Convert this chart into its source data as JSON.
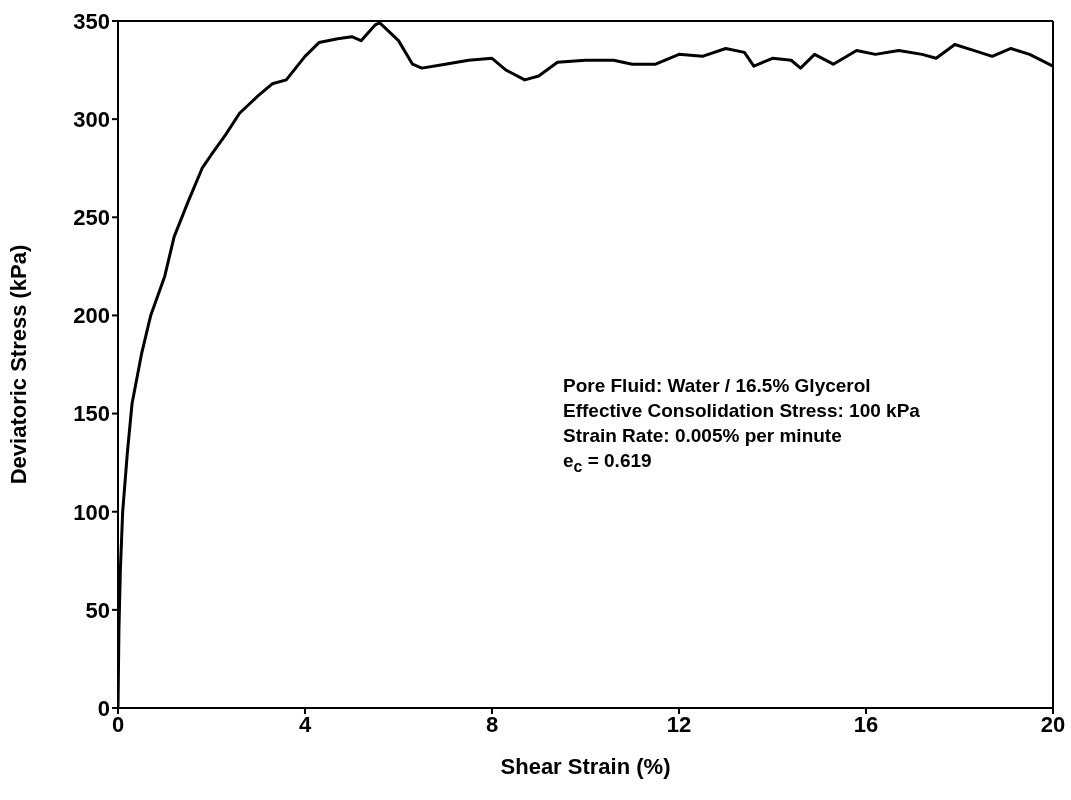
{
  "chart_data": {
    "type": "line",
    "xlabel": "Shear Strain (%)",
    "ylabel": "Deviatoric Stress (kPa)",
    "xlim": [
      0,
      20
    ],
    "xticks": [
      0,
      4,
      8,
      12,
      16,
      20
    ],
    "ylim": [
      0,
      350
    ],
    "yticks": [
      0,
      50,
      100,
      150,
      200,
      250,
      300,
      350
    ],
    "grid": false,
    "marker": "none",
    "line_style": "solid",
    "annotations": [
      "Pore Fluid: Water / 16.5% Glycerol",
      "Effective Consolidation Stress: 100 kPa",
      "Strain Rate: 0.005% per minute",
      "e$_{c}$ = 0.619"
    ],
    "series": [
      {
        "color": "#000000",
        "x": [
          0,
          0.02,
          0.05,
          0.1,
          0.2,
          0.3,
          0.5,
          0.7,
          1.0,
          1.2,
          1.5,
          1.8,
          2.0,
          2.3,
          2.6,
          3.0,
          3.3,
          3.6,
          4.0,
          4.3,
          4.7,
          5.0,
          5.2,
          5.5,
          5.6,
          6.0,
          6.3,
          6.5,
          7.0,
          7.5,
          8.0,
          8.3,
          8.7,
          9.0,
          9.4,
          10,
          10.6,
          11.0,
          11.5,
          12.0,
          12.5,
          13,
          13.4,
          13.6,
          14,
          14.4,
          14.6,
          14.9,
          15.3,
          15.8,
          16.2,
          16.7,
          17.2,
          17.5,
          17.9,
          18.3,
          18.7,
          19.1,
          19.5,
          20
        ],
        "values": [
          0,
          40,
          70,
          100,
          130,
          155,
          180,
          200,
          220,
          240,
          258,
          275,
          282,
          292,
          303,
          312,
          318,
          320,
          332,
          339,
          341,
          342,
          340,
          348,
          349,
          340,
          328,
          326,
          328,
          330,
          331,
          325,
          320,
          322,
          329,
          330,
          330,
          328,
          328,
          333,
          332,
          336,
          334,
          327,
          331,
          330,
          326,
          333,
          328,
          335,
          333,
          335,
          333,
          331,
          338,
          335,
          332,
          336,
          333,
          327
        ]
      }
    ]
  }
}
